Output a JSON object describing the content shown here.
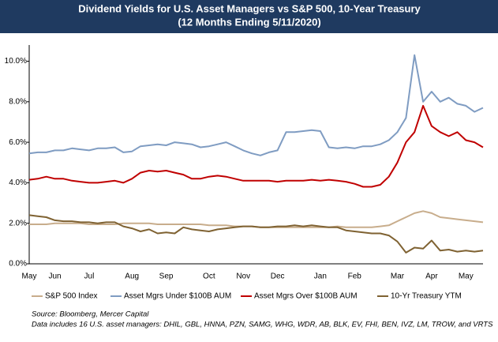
{
  "chart_data": {
    "type": "line",
    "title": "Dividend Yields for U.S. Asset Managers vs S&P 500, 10-Year Treasury",
    "subtitle": "(12 Months Ending 5/11/2020)",
    "categories": [
      "May",
      null,
      null,
      "Jun",
      null,
      null,
      null,
      "Jul",
      null,
      null,
      null,
      null,
      "Aug",
      null,
      null,
      null,
      "Sep",
      null,
      null,
      null,
      null,
      "Oct",
      null,
      null,
      null,
      "Nov",
      null,
      null,
      null,
      "Dec",
      null,
      null,
      null,
      null,
      "Jan",
      null,
      null,
      null,
      "Feb",
      null,
      null,
      null,
      null,
      "Mar",
      null,
      null,
      null,
      "Apr",
      null,
      null,
      null,
      "May",
      null,
      null
    ],
    "series": [
      {
        "name": "S&P 500 Index",
        "color": "#c8ad8c",
        "values": [
          1.95,
          1.95,
          1.95,
          2.0,
          2.0,
          2.0,
          2.0,
          1.95,
          1.95,
          1.95,
          1.95,
          2.0,
          2.0,
          2.0,
          2.0,
          1.95,
          1.95,
          1.95,
          1.95,
          1.95,
          1.95,
          1.9,
          1.9,
          1.9,
          1.85,
          1.85,
          1.85,
          1.8,
          1.8,
          1.8,
          1.8,
          1.8,
          1.8,
          1.8,
          1.8,
          1.8,
          1.85,
          1.8,
          1.8,
          1.8,
          1.8,
          1.85,
          1.9,
          2.1,
          2.3,
          2.5,
          2.6,
          2.5,
          2.3,
          2.25,
          2.2,
          2.15,
          2.1,
          2.05
        ]
      },
      {
        "name": "Asset Mgrs Under $100B AUM",
        "color": "#7f9cc2",
        "values": [
          5.45,
          5.5,
          5.5,
          5.6,
          5.6,
          5.7,
          5.65,
          5.6,
          5.7,
          5.7,
          5.75,
          5.5,
          5.55,
          5.8,
          5.85,
          5.9,
          5.85,
          6.0,
          5.95,
          5.9,
          5.75,
          5.8,
          5.9,
          6.0,
          5.8,
          5.6,
          5.45,
          5.35,
          5.5,
          5.6,
          6.5,
          6.5,
          6.55,
          6.6,
          6.55,
          5.75,
          5.7,
          5.75,
          5.7,
          5.8,
          5.8,
          5.9,
          6.1,
          6.5,
          7.2,
          10.3,
          8.0,
          8.5,
          8.0,
          8.2,
          7.9,
          7.8,
          7.5,
          7.7
        ]
      },
      {
        "name": "Asset Mgrs Over $100B AUM",
        "color": "#c00000",
        "values": [
          4.15,
          4.2,
          4.3,
          4.2,
          4.2,
          4.1,
          4.05,
          4.0,
          4.0,
          4.05,
          4.1,
          4.0,
          4.2,
          4.5,
          4.6,
          4.55,
          4.6,
          4.5,
          4.4,
          4.2,
          4.2,
          4.3,
          4.35,
          4.3,
          4.2,
          4.1,
          4.1,
          4.1,
          4.1,
          4.05,
          4.1,
          4.1,
          4.1,
          4.15,
          4.1,
          4.15,
          4.1,
          4.05,
          3.95,
          3.8,
          3.8,
          3.9,
          4.3,
          5.0,
          6.0,
          6.5,
          7.8,
          6.8,
          6.5,
          6.3,
          6.5,
          6.1,
          6.0,
          5.75
        ]
      },
      {
        "name": "10-Yr Treasury YTM",
        "color": "#7f6232",
        "values": [
          2.4,
          2.35,
          2.3,
          2.15,
          2.1,
          2.1,
          2.05,
          2.05,
          2.0,
          2.05,
          2.05,
          1.85,
          1.75,
          1.6,
          1.7,
          1.5,
          1.55,
          1.5,
          1.8,
          1.7,
          1.65,
          1.6,
          1.7,
          1.75,
          1.8,
          1.85,
          1.85,
          1.8,
          1.8,
          1.85,
          1.85,
          1.9,
          1.85,
          1.9,
          1.85,
          1.8,
          1.8,
          1.65,
          1.6,
          1.55,
          1.5,
          1.5,
          1.4,
          1.1,
          0.55,
          0.8,
          0.75,
          1.15,
          0.65,
          0.7,
          0.6,
          0.65,
          0.6,
          0.65
        ]
      }
    ],
    "ylim": [
      0,
      10.8
    ],
    "yticks": [
      {
        "value": 0,
        "label": "0.0%"
      },
      {
        "value": 2,
        "label": "2.0%"
      },
      {
        "value": 4,
        "label": "4.0%"
      },
      {
        "value": 6,
        "label": "6.0%"
      },
      {
        "value": 8,
        "label": "8.0%"
      },
      {
        "value": 10,
        "label": "10.0%"
      }
    ],
    "notes": [
      "Source: Bloomberg, Mercer Capital",
      "Data includes 16 U.S. asset managers: DHIL, GBL, HNNA, PZN, SAMG, WHG, WDR, AB, BLK, EV, FHI, BEN, IVZ, LM, TROW, and VRTS"
    ]
  }
}
